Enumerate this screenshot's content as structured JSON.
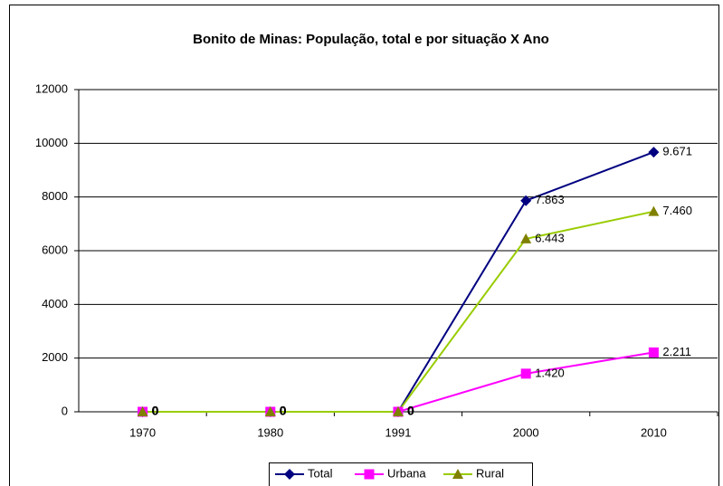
{
  "chart_data": {
    "type": "line",
    "title": "Bonito de Minas: População, total e por situação X Ano",
    "categories": [
      "1970",
      "1980",
      "1991",
      "2000",
      "2010"
    ],
    "series": [
      {
        "name": "Total",
        "color": "#000080",
        "marker_color": "#000080",
        "marker": "diamond",
        "values": [
          0,
          0,
          0,
          7863,
          9671
        ],
        "value_labels": [
          "0",
          "0",
          "0",
          "7.863",
          "9.671"
        ]
      },
      {
        "name": "Urbana",
        "color": "#ff00ff",
        "marker_color": "#ff00ff",
        "marker": "square",
        "values": [
          0,
          0,
          0,
          1420,
          2211
        ],
        "value_labels": [
          "0",
          "0",
          "0",
          "1.420",
          "2.211"
        ]
      },
      {
        "name": "Rural",
        "color": "#99cc00",
        "marker_color": "#808000",
        "marker": "triangle",
        "values": [
          0,
          0,
          0,
          6443,
          7460
        ],
        "value_labels": [
          "0",
          "0",
          "0",
          "6.443",
          "7.460"
        ]
      }
    ],
    "ylim": [
      0,
      12000
    ],
    "yticks": [
      0,
      2000,
      4000,
      6000,
      8000,
      10000,
      12000
    ],
    "grid": true,
    "legend": "bottom"
  }
}
